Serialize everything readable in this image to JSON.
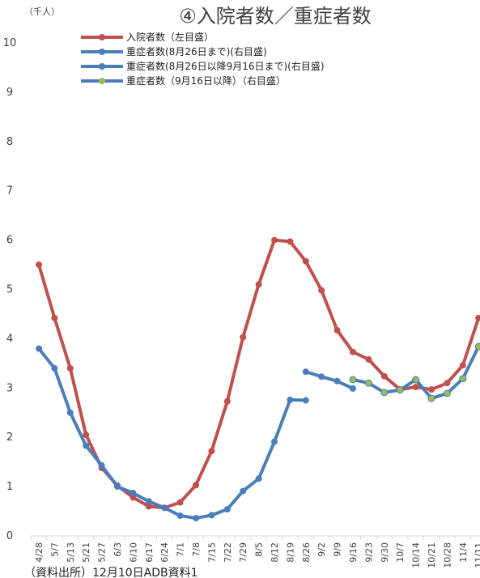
{
  "chart_data": {
    "type": "line",
    "title": "④入院者数／重症者数",
    "y_label": "（千人）",
    "source": "（資料出所）12月10日ADB資料1",
    "categories": [
      "4/28",
      "5/7",
      "5/13",
      "5/21",
      "5/27",
      "6/3",
      "6/10",
      "6/17",
      "6/24",
      "7/1",
      "7/8",
      "7/15",
      "7/22",
      "7/29",
      "8/5",
      "8/12",
      "8/19",
      "8/26",
      "9/2",
      "9/9",
      "9/16",
      "9/23",
      "9/30",
      "10/7",
      "10/14",
      "10/21",
      "10/28",
      "11/4",
      "11/11"
    ],
    "ylim": [
      0,
      10
    ],
    "yticks": [
      0,
      1,
      2,
      3,
      4,
      5,
      6,
      7,
      8,
      9,
      10
    ],
    "series": [
      {
        "name": "入院者数（左目盛）",
        "color": "#c0504d",
        "values": [
          5.5,
          4.42,
          3.4,
          2.05,
          1.38,
          1.02,
          0.78,
          0.6,
          0.57,
          0.68,
          1.03,
          1.72,
          2.73,
          4.03,
          5.1,
          6.0,
          5.97,
          5.57,
          4.98,
          4.17,
          3.73,
          3.58,
          3.24,
          2.97,
          3.02,
          2.97,
          3.1,
          3.46,
          4.42
        ]
      },
      {
        "name": "重症者数(8月26日まで)(右目盛)",
        "color": "#4a7ebb",
        "values": [
          3.8,
          3.4,
          2.5,
          1.83,
          1.43,
          1.0,
          0.87,
          0.7,
          0.57,
          0.41,
          0.36,
          0.42,
          0.54,
          0.91,
          1.16,
          1.91,
          2.76,
          2.75,
          null,
          null,
          null,
          null,
          null,
          null,
          null,
          null,
          null,
          null,
          null
        ]
      },
      {
        "name": "重症者数(8月26日以降9月16日まで)(右目盛)",
        "color": "#4a7ebb",
        "values": [
          null,
          null,
          null,
          null,
          null,
          null,
          null,
          null,
          null,
          null,
          null,
          null,
          null,
          null,
          null,
          null,
          null,
          3.33,
          3.23,
          3.14,
          2.99,
          null,
          null,
          null,
          null,
          null,
          null,
          null,
          null
        ]
      },
      {
        "name": "重症者数（9月16日以降）（右目盛）",
        "color": "#4a7ebb",
        "marker_color": "#9bbb59",
        "values": [
          null,
          null,
          null,
          null,
          null,
          null,
          null,
          null,
          null,
          null,
          null,
          null,
          null,
          null,
          null,
          null,
          null,
          null,
          null,
          null,
          3.17,
          3.1,
          2.91,
          2.96,
          3.17,
          2.79,
          2.89,
          3.19,
          3.84
        ]
      }
    ]
  }
}
